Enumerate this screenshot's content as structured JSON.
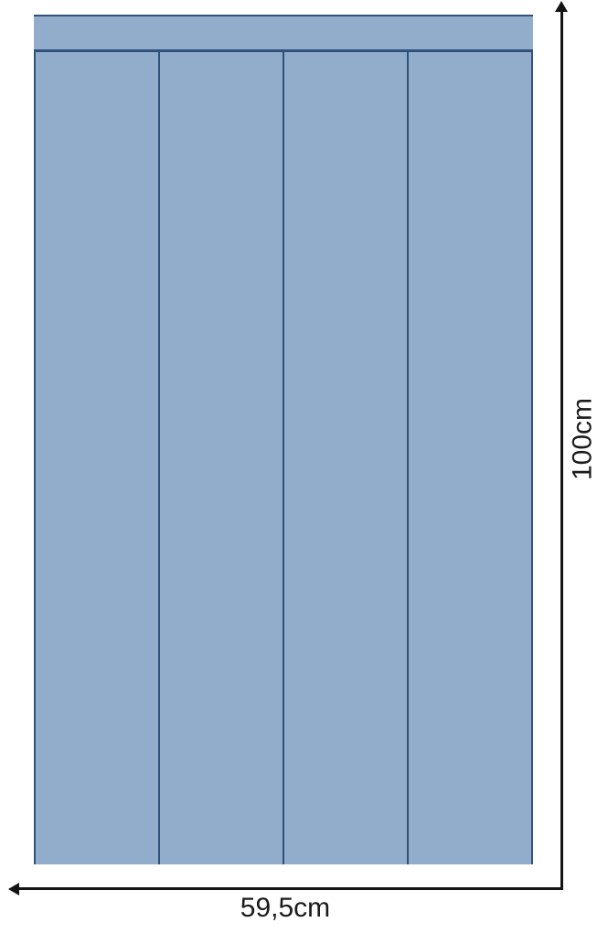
{
  "diagram": {
    "width_label": "59,5cm",
    "height_label": "100cm",
    "panel_count": 4,
    "colors": {
      "wallpaper_fill": "#92adcb",
      "wallpaper_border": "#30517a",
      "dimension_line": "#141414",
      "label_text": "#1a1a1a"
    }
  }
}
